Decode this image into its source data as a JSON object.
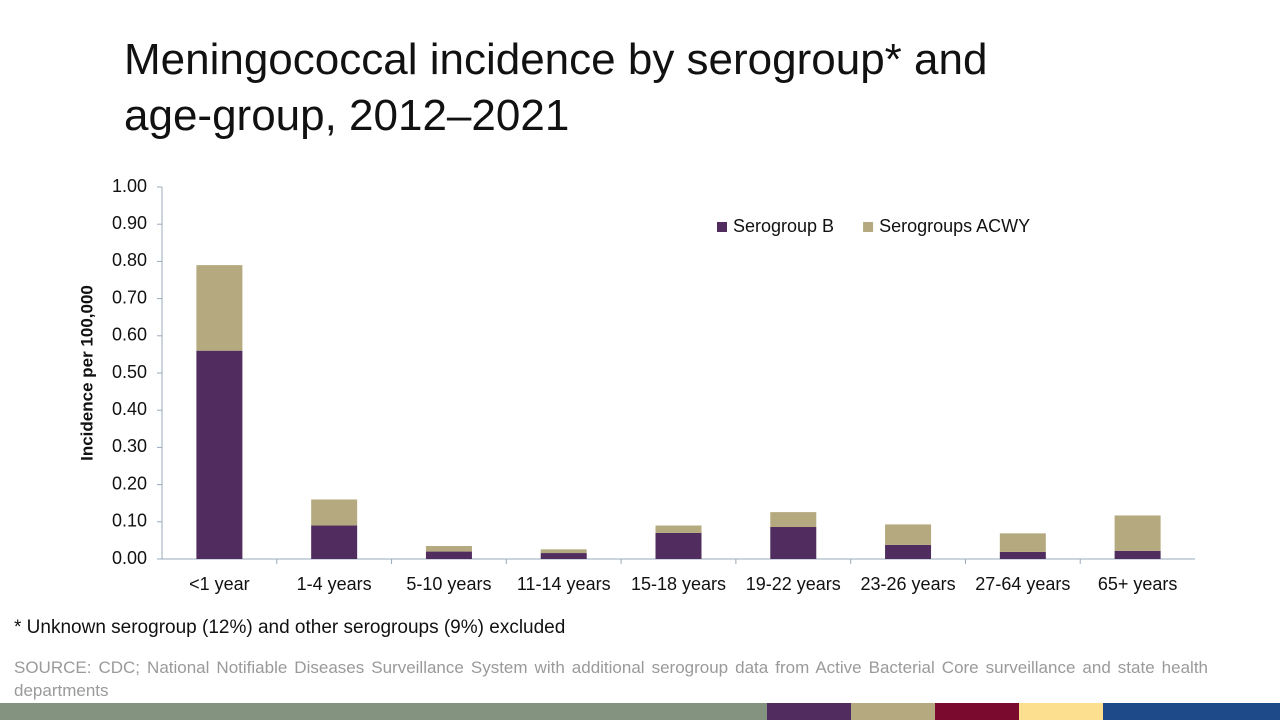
{
  "chart_data": {
    "type": "stacked_bar",
    "title": "Meningococcal incidence by serogroup* and age-group, 2012–2021",
    "y_label": "Incidence per 100,000",
    "categories": [
      "<1 year",
      "1-4 years",
      "5-10 years",
      "11-14 years",
      "15-18 years",
      "19-22 years",
      "23-26 years",
      "27-64 years",
      "65+ years"
    ],
    "series": [
      {
        "name": "Serogroup B",
        "color": "#512d5f",
        "values": [
          0.56,
          0.09,
          0.02,
          0.016,
          0.07,
          0.086,
          0.038,
          0.019,
          0.022
        ]
      },
      {
        "name": "Serogroups ACWY",
        "color": "#b5aa7f",
        "values": [
          0.23,
          0.07,
          0.015,
          0.01,
          0.02,
          0.04,
          0.055,
          0.05,
          0.095
        ]
      }
    ],
    "ylim": [
      0,
      1
    ],
    "yticks": [
      {
        "value": 0,
        "label": "0.00"
      },
      {
        "value": 0.1,
        "label": "0.10"
      },
      {
        "value": 0.2,
        "label": "0.20"
      },
      {
        "value": 0.3,
        "label": "0.30"
      },
      {
        "value": 0.4,
        "label": "0.40"
      },
      {
        "value": 0.5,
        "label": "0.50"
      },
      {
        "value": 0.6,
        "label": "0.60"
      },
      {
        "value": 0.7,
        "label": "0.70"
      },
      {
        "value": 0.8,
        "label": "0.80"
      },
      {
        "value": 0.9,
        "label": "0.90"
      },
      {
        "value": 1,
        "label": "1.00"
      }
    ],
    "grid": false,
    "footnote": "* Unknown serogroup (12%) and other serogroups (9%) excluded",
    "source": "SOURCE: CDC; National Notifiable Diseases Surveillance System with additional serogroup data from Active Bacterial Core surveillance and state health departments"
  }
}
